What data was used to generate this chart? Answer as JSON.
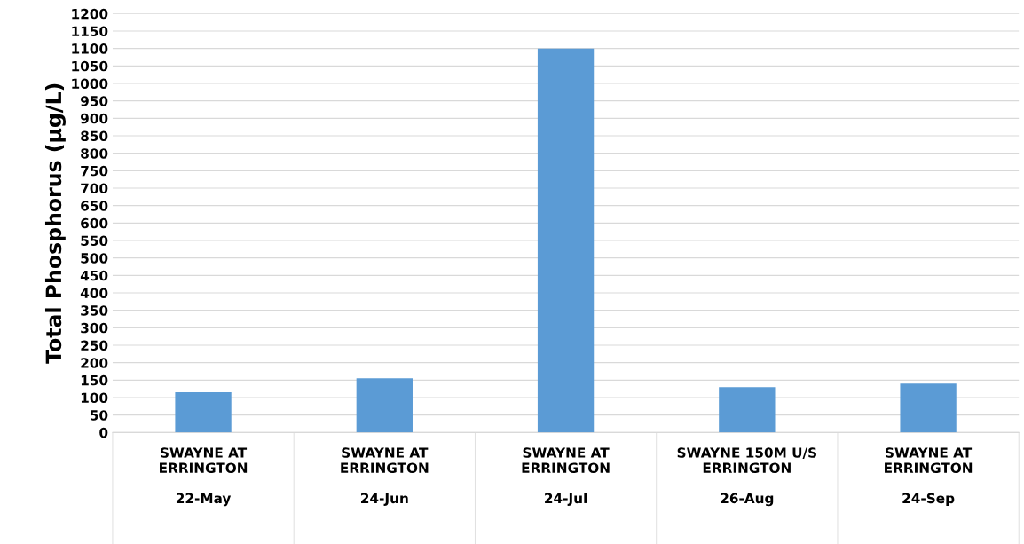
{
  "chart_data": {
    "type": "bar",
    "ylabel": "Total Phosphorus (µg/L)",
    "categories": [
      "SWAYNE AT\nERRINGTON\n\n22-May",
      "SWAYNE AT\nERRINGTON\n\n24-Jun",
      "SWAYNE AT\nERRINGTON\n\n24-Jul",
      "SWAYNE 150M U/S\nERRINGTON\n\n26-Aug",
      "SWAYNE AT\nERRINGTON\n\n24-Sep"
    ],
    "values": [
      115,
      155,
      1100,
      130,
      140
    ],
    "color": "#5b9bd5",
    "ylim": [
      0,
      1200
    ],
    "yticks": [
      0,
      50,
      100,
      150,
      200,
      250,
      300,
      350,
      400,
      450,
      500,
      550,
      600,
      650,
      700,
      750,
      800,
      850,
      900,
      950,
      1000,
      1050,
      1100,
      1150,
      1200
    ],
    "grid": "y",
    "legend": false
  }
}
